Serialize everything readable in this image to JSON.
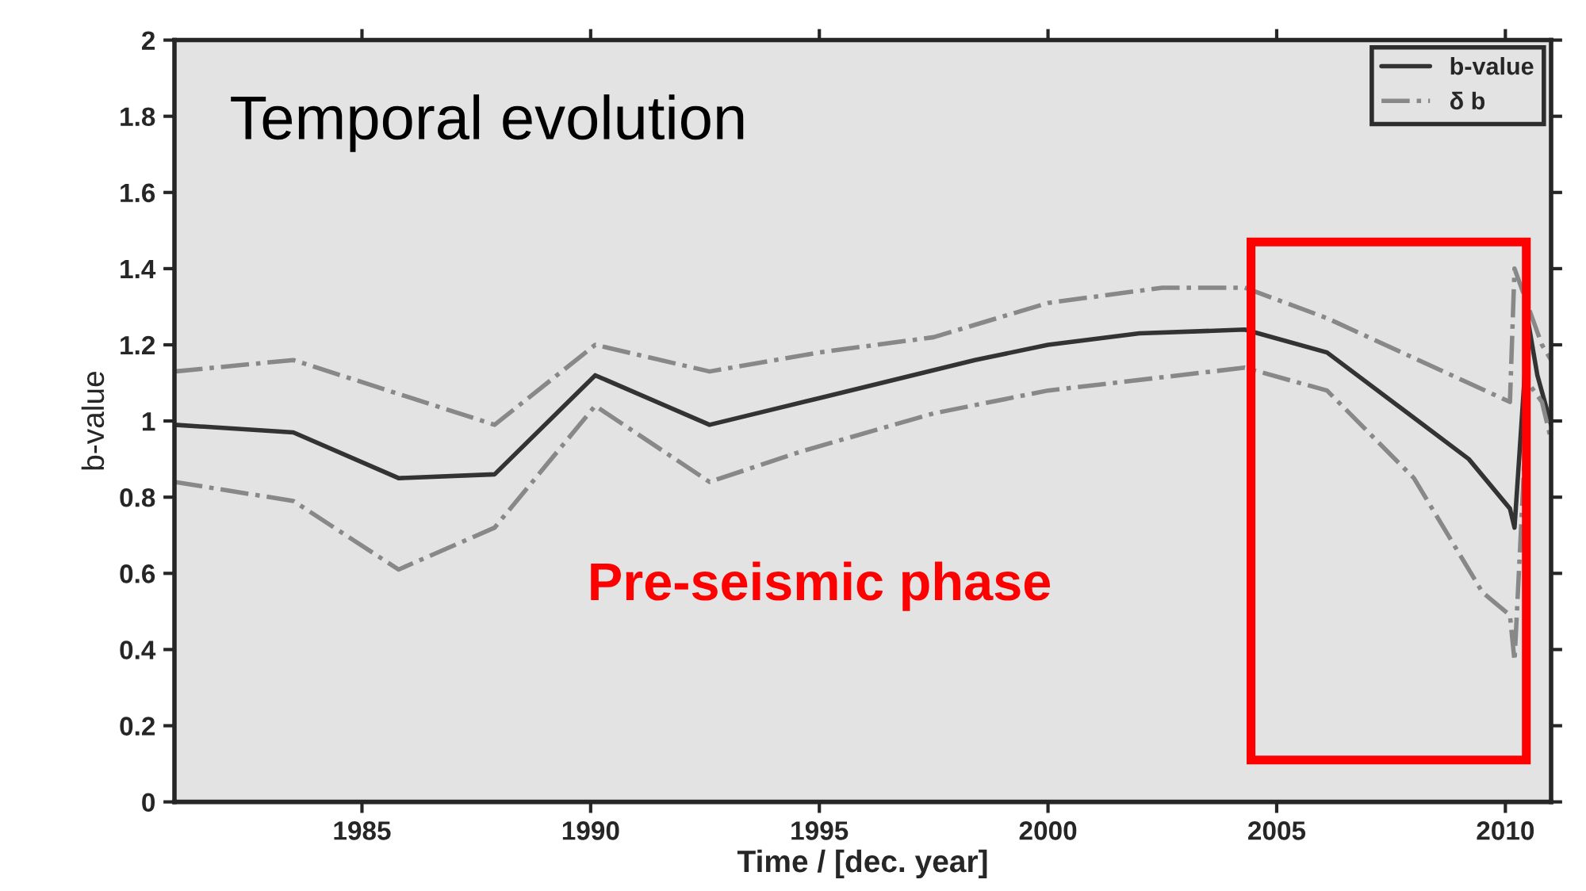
{
  "chart_data": {
    "type": "line",
    "xlabel": "Time / [dec. year]",
    "ylabel": "b-value",
    "annotations": [
      "Temporal evolution",
      "Pre-seismic phase"
    ],
    "xlim": [
      1980.9,
      2011
    ],
    "xticks": [
      1985,
      1990,
      1995,
      2000,
      2005,
      2010
    ],
    "ylim": [
      0,
      2
    ],
    "yticks": [
      0,
      0.2,
      0.4,
      0.6,
      0.8,
      1,
      1.2,
      1.4,
      1.6,
      1.8,
      2
    ],
    "grid": false,
    "legend": "top right",
    "series": [
      {
        "name": "b-value",
        "color": "#333333",
        "line_style": "solid",
        "x": [
          1980.9,
          1983.5,
          1985.8,
          1987.9,
          1990.1,
          1992.6,
          1995,
          1998.4,
          2000,
          2002,
          2004.3,
          2006.1,
          2009.2,
          2010.1,
          2010.2,
          2010.5,
          2010.7,
          2011
        ],
        "values": [
          0.99,
          0.97,
          0.85,
          0.86,
          1.12,
          0.99,
          1.06,
          1.16,
          1.2,
          1.23,
          1.24,
          1.18,
          0.9,
          0.77,
          0.72,
          1.26,
          1.12,
          0.99
        ]
      },
      {
        "name": "δ b",
        "color": "#888888",
        "line_style": "dashdot",
        "x": [
          1980.9,
          1983.5,
          1987.9,
          1990.1,
          1992.6,
          1995,
          1997.5,
          2000,
          2002.5,
          2004.3,
          2006.1,
          2010.1,
          2010.2,
          2010.5,
          2010.8,
          2011
        ],
        "values": [
          1.13,
          1.16,
          0.99,
          1.2,
          1.13,
          1.18,
          1.22,
          1.31,
          1.35,
          1.35,
          1.27,
          1.05,
          1.4,
          1.3,
          1.2,
          1.16
        ]
      },
      {
        "color": "#888888",
        "line_style": "dashdot",
        "x": [
          1980.9,
          1983.5,
          1985.8,
          1987.9,
          1990.1,
          1992.6,
          1994.6,
          1997.5,
          2000,
          2004.3,
          2006.1,
          2008,
          2009.5,
          2010.1,
          2010.2,
          2010.5,
          2010.8,
          2011
        ],
        "values": [
          0.84,
          0.79,
          0.61,
          0.72,
          1.04,
          0.84,
          0.92,
          1.02,
          1.08,
          1.14,
          1.08,
          0.85,
          0.55,
          0.49,
          0.37,
          1.1,
          1.05,
          0.95
        ]
      }
    ]
  }
}
